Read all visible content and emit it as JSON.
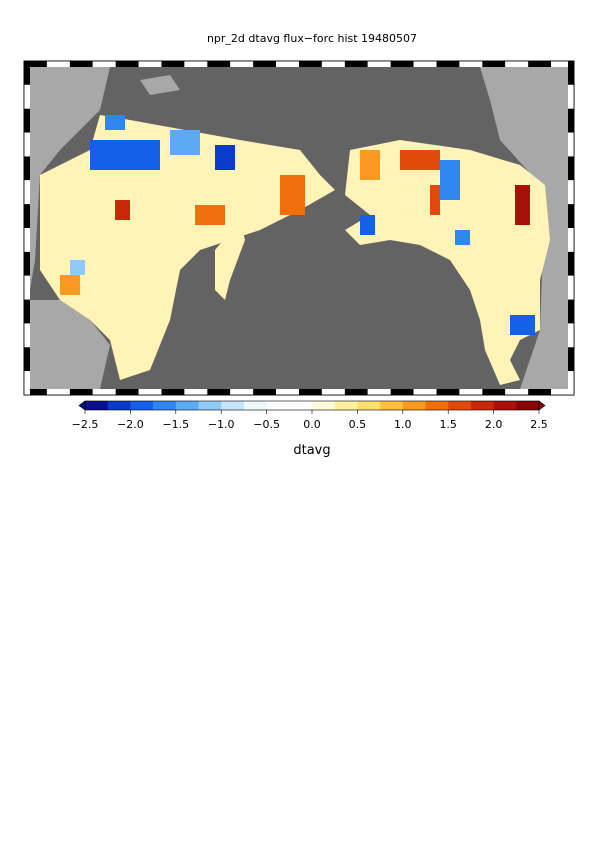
{
  "title": "npr_2d dtavg flux−forc hist 19480507",
  "colorbar": {
    "label": "dtavg",
    "clim": [
      -2.5,
      2.5
    ],
    "colors": [
      "#08108c",
      "#0a3bc8",
      "#1560e8",
      "#2f86f0",
      "#5aaaf4",
      "#8fcbf6",
      "#c4e6f8",
      "#eef8fb",
      "#ffffff",
      "#ffffff",
      "#fffbd8",
      "#fff0a0",
      "#ffdd70",
      "#ffc040",
      "#fb9a20",
      "#f07010",
      "#e04a0a",
      "#c82808",
      "#a81008",
      "#880404"
    ],
    "ticks": [
      {
        "value": -2.5,
        "label": "−2.5"
      },
      {
        "value": -2.0,
        "label": "−2.0"
      },
      {
        "value": -1.5,
        "label": "−1.5"
      },
      {
        "value": -1.0,
        "label": "−1.0"
      },
      {
        "value": -0.5,
        "label": "−0.5"
      },
      {
        "value": 0,
        "label": "0.0"
      },
      0.5,
      {
        "value": 1,
        "label": "1.0"
      },
      1.5,
      {
        "value": 2,
        "label": "2.0"
      },
      2.5
    ]
  }
}
